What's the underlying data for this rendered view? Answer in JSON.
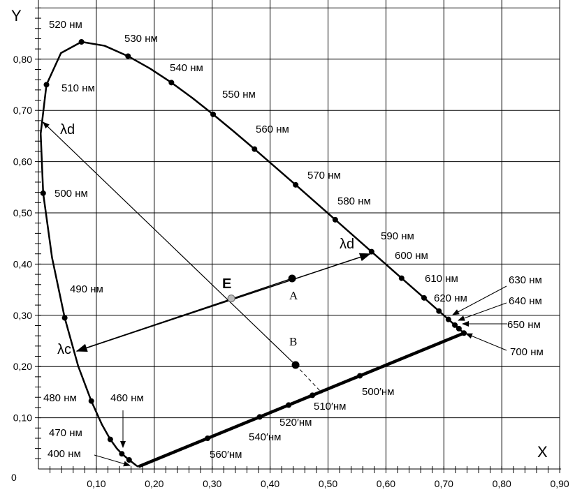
{
  "chart_data": {
    "type": "scatter",
    "title": "",
    "xlabel": "X",
    "ylabel": "Y",
    "xlim": [
      0,
      0.9
    ],
    "ylim": [
      0,
      0.9
    ],
    "grid": true,
    "origin_label": "0",
    "x_ticks": [
      "0,10",
      "0,20",
      "0,30",
      "0,40",
      "0,50",
      "0,60",
      "0,70",
      "0,80",
      "0,90"
    ],
    "y_ticks": [
      "0,10",
      "0,20",
      "0,30",
      "0,40",
      "0,50",
      "0,60",
      "0,70",
      "0,80"
    ],
    "spectral_locus": [
      [
        400,
        0.1733,
        0.0048
      ],
      [
        410,
        0.1726,
        0.0048
      ],
      [
        420,
        0.1714,
        0.0051
      ],
      [
        430,
        0.1689,
        0.0069
      ],
      [
        440,
        0.1644,
        0.0109
      ],
      [
        450,
        0.1566,
        0.0177
      ],
      [
        460,
        0.144,
        0.0297
      ],
      [
        465,
        0.1355,
        0.0399
      ],
      [
        470,
        0.1241,
        0.0578
      ],
      [
        475,
        0.1096,
        0.0868
      ],
      [
        480,
        0.0913,
        0.1327
      ],
      [
        485,
        0.0687,
        0.2007
      ],
      [
        490,
        0.0454,
        0.295
      ],
      [
        495,
        0.0235,
        0.4127
      ],
      [
        500,
        0.0082,
        0.5384
      ],
      [
        505,
        0.0039,
        0.6548
      ],
      [
        510,
        0.0139,
        0.7502
      ],
      [
        515,
        0.0389,
        0.812
      ],
      [
        520,
        0.0743,
        0.8338
      ],
      [
        525,
        0.1142,
        0.8262
      ],
      [
        530,
        0.1547,
        0.8059
      ],
      [
        535,
        0.1929,
        0.7816
      ],
      [
        540,
        0.2296,
        0.7543
      ],
      [
        545,
        0.2658,
        0.7243
      ],
      [
        550,
        0.3016,
        0.6923
      ],
      [
        555,
        0.3373,
        0.6589
      ],
      [
        560,
        0.3731,
        0.6245
      ],
      [
        570,
        0.4441,
        0.5547
      ],
      [
        580,
        0.5125,
        0.4866
      ],
      [
        590,
        0.5752,
        0.4242
      ],
      [
        600,
        0.627,
        0.3725
      ],
      [
        610,
        0.6658,
        0.334
      ],
      [
        620,
        0.6915,
        0.3083
      ],
      [
        630,
        0.7079,
        0.292
      ],
      [
        640,
        0.719,
        0.2809
      ],
      [
        650,
        0.726,
        0.274
      ],
      [
        700,
        0.7347,
        0.2653
      ]
    ],
    "marked_wavelengths": [
      450,
      460,
      470,
      480,
      490,
      500,
      510,
      520,
      530,
      540,
      550,
      560,
      570,
      580,
      590,
      600,
      610,
      620,
      630,
      640,
      650,
      700
    ],
    "locus_labels": [
      {
        "wl": 520,
        "text": "520 нм"
      },
      {
        "wl": 530,
        "text": "530 нм"
      },
      {
        "wl": 540,
        "text": "540 нм"
      },
      {
        "wl": 550,
        "text": "550 нм"
      },
      {
        "wl": 560,
        "text": "560 нм"
      },
      {
        "wl": 570,
        "text": "570 нм"
      },
      {
        "wl": 580,
        "text": "580 нм"
      },
      {
        "wl": 590,
        "text": "590 нм"
      },
      {
        "wl": 600,
        "text": "600 нм"
      },
      {
        "wl": 610,
        "text": "610 нм"
      },
      {
        "wl": 620,
        "text": "620 нм"
      },
      {
        "wl": 630,
        "text": "630 нм"
      },
      {
        "wl": 640,
        "text": "640 нм"
      },
      {
        "wl": 650,
        "text": "650 нм"
      },
      {
        "wl": 700,
        "text": "700 нм"
      },
      {
        "wl": 510,
        "text": "510 нм"
      },
      {
        "wl": 500,
        "text": "500 нм"
      },
      {
        "wl": 490,
        "text": "490 нм"
      },
      {
        "wl": 480,
        "text": "480 нм"
      },
      {
        "wl": 470,
        "text": "470 нм"
      },
      {
        "wl": 460,
        "text": "460 нм"
      },
      {
        "wl": 400,
        "text": "400 нм"
      }
    ],
    "purple_points": [
      {
        "x": 0.292,
        "text": "560′нм"
      },
      {
        "x": 0.382,
        "text": "540′нм"
      },
      {
        "x": 0.432,
        "text": "520′нм"
      },
      {
        "x": 0.473,
        "text": "510′нм"
      },
      {
        "x": 0.555,
        "text": "500′нм"
      }
    ],
    "points": {
      "E": {
        "x": 0.333,
        "y": 0.333,
        "text": "E"
      },
      "A": {
        "x": 0.438,
        "y": 0.372,
        "text": "A"
      },
      "B": {
        "x": 0.444,
        "y": 0.203,
        "text": "B"
      }
    },
    "dominant_A": {
      "x": 0.573,
      "y": 0.42,
      "text": "λd"
    },
    "complementary_A": {
      "x": 0.066,
      "y": 0.23,
      "text": "λc"
    },
    "dominant_B": {
      "x": 0.008,
      "y": 0.677,
      "text": "λd"
    },
    "purple_hit_B": {
      "x": 0.49,
      "y": 0.148
    }
  }
}
